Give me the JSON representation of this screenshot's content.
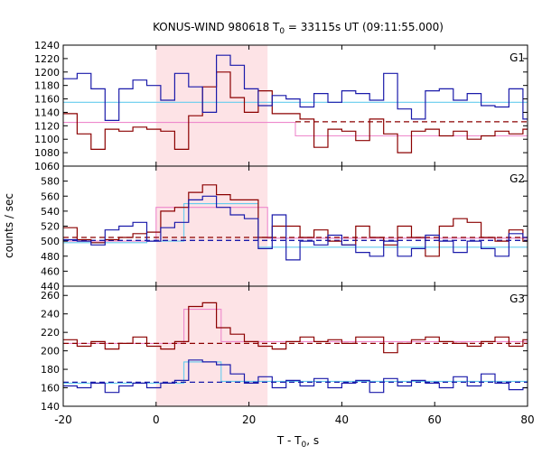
{
  "chart_data": {
    "type": "line",
    "title_main": "KONUS-WIND 980618 T",
    "title_sub": "0",
    "title_rest": " = 33115s UT (09:11:55.000)",
    "ylabel": "counts / sec",
    "xlabel_main": "T - T",
    "xlabel_sub": "0",
    "xlabel_rest": ", s",
    "xlim": [
      -20,
      80
    ],
    "x_ticks": [
      -20,
      0,
      20,
      40,
      60,
      80
    ],
    "shaded_interval": [
      0,
      24
    ],
    "colors": {
      "red": "#8b0000",
      "blue": "#1a1aaa",
      "pink": "#ee88cc",
      "cyan": "#66ccee",
      "shade": "#fde3e6"
    },
    "panels": [
      {
        "label": "G1",
        "ylim": [
          1060,
          1240
        ],
        "y_ticks": [
          1060,
          1080,
          1100,
          1120,
          1140,
          1160,
          1180,
          1200,
          1220,
          1240
        ],
        "series": [
          {
            "color": "red",
            "x": [
              -20,
              -17,
              -14,
              -11,
              -8,
              -5,
              -2,
              1,
              4,
              7,
              10,
              13,
              16,
              19,
              22,
              25,
              28,
              31,
              34,
              37,
              40,
              43,
              46,
              49,
              52,
              55,
              58,
              61,
              64,
              67,
              70,
              73,
              76,
              79
            ],
            "y": [
              1138,
              1108,
              1085,
              1115,
              1112,
              1118,
              1115,
              1112,
              1085,
              1135,
              1178,
              1200,
              1162,
              1140,
              1172,
              1138,
              1138,
              1130,
              1088,
              1115,
              1112,
              1098,
              1130,
              1108,
              1080,
              1112,
              1115,
              1105,
              1112,
              1100,
              1105,
              1112,
              1108,
              1115
            ]
          },
          {
            "color": "blue",
            "x": [
              -20,
              -17,
              -14,
              -11,
              -8,
              -5,
              -2,
              1,
              4,
              7,
              10,
              13,
              16,
              19,
              22,
              25,
              28,
              31,
              34,
              37,
              40,
              43,
              46,
              49,
              52,
              55,
              58,
              61,
              64,
              67,
              70,
              73,
              76,
              79
            ],
            "y": [
              1190,
              1198,
              1175,
              1128,
              1175,
              1188,
              1180,
              1158,
              1198,
              1178,
              1140,
              1225,
              1210,
              1175,
              1150,
              1165,
              1160,
              1148,
              1168,
              1155,
              1172,
              1168,
              1158,
              1198,
              1145,
              1130,
              1172,
              1175,
              1158,
              1168,
              1150,
              1148,
              1175,
              1130
            ]
          }
        ],
        "fits": [
          {
            "color": "cyan",
            "x": [
              -20,
              2,
              2,
              35,
              35,
              80
            ],
            "y": [
              1155,
              1155,
              1155,
              1155,
              1155,
              1155
            ],
            "dashed": false
          },
          {
            "color": "pink",
            "x": [
              -20,
              -2,
              -2,
              6,
              6,
              30,
              30,
              80
            ],
            "y": [
              1125,
              1125,
              1125,
              1125,
              1125,
              1125,
              1105,
              1105
            ],
            "dashed": false
          },
          {
            "color": "red",
            "x": [
              30,
              80
            ],
            "y": [
              1126,
              1126
            ],
            "dashed": true
          }
        ]
      },
      {
        "label": "G2",
        "ylim": [
          440,
          600
        ],
        "y_ticks": [
          440,
          460,
          480,
          500,
          520,
          540,
          560,
          580
        ],
        "series": [
          {
            "color": "red",
            "x": [
              -20,
              -17,
              -14,
              -11,
              -8,
              -5,
              -2,
              1,
              4,
              7,
              10,
              13,
              16,
              19,
              22,
              25,
              28,
              31,
              34,
              37,
              40,
              43,
              46,
              49,
              52,
              55,
              58,
              61,
              64,
              67,
              70,
              73,
              76,
              79
            ],
            "y": [
              518,
              502,
              498,
              502,
              505,
              510,
              512,
              540,
              545,
              565,
              575,
              562,
              555,
              555,
              505,
              520,
              520,
              505,
              515,
              500,
              495,
              520,
              505,
              495,
              520,
              505,
              480,
              520,
              530,
              525,
              505,
              500,
              515,
              500
            ]
          },
          {
            "color": "blue",
            "x": [
              -20,
              -17,
              -14,
              -11,
              -8,
              -5,
              -2,
              1,
              4,
              7,
              10,
              13,
              16,
              19,
              22,
              25,
              28,
              31,
              34,
              37,
              40,
              43,
              46,
              49,
              52,
              55,
              58,
              61,
              64,
              67,
              70,
              73,
              76,
              79
            ],
            "y": [
              502,
              500,
              495,
              515,
              520,
              525,
              500,
              518,
              525,
              555,
              560,
              545,
              535,
              530,
              490,
              535,
              475,
              500,
              495,
              508,
              495,
              485,
              480,
              500,
              480,
              490,
              508,
              500,
              485,
              500,
              490,
              480,
              510,
              505
            ]
          }
        ],
        "fits": [
          {
            "color": "cyan",
            "x": [
              -20,
              -2,
              -2,
              6,
              6,
              20,
              20,
              22,
              22,
              80
            ],
            "y": [
              498,
              498,
              500,
              500,
              550,
              550,
              550,
              550,
              492,
              492
            ],
            "dashed": false
          },
          {
            "color": "pink",
            "x": [
              -20,
              0,
              0,
              24,
              24,
              80
            ],
            "y": [
              500,
              500,
              545,
              545,
              504,
              504
            ],
            "dashed": false
          },
          {
            "color": "red",
            "x": [
              -20,
              80
            ],
            "y": [
              505,
              505
            ],
            "dashed": true
          },
          {
            "color": "blue",
            "x": [
              -20,
              80
            ],
            "y": [
              501,
              501
            ],
            "dashed": true
          }
        ]
      },
      {
        "label": "G3",
        "ylim": [
          140,
          270
        ],
        "y_ticks": [
          140,
          160,
          180,
          200,
          220,
          240,
          260
        ],
        "series": [
          {
            "color": "red",
            "x": [
              -20,
              -17,
              -14,
              -11,
              -8,
              -5,
              -2,
              1,
              4,
              7,
              10,
              13,
              16,
              19,
              22,
              25,
              28,
              31,
              34,
              37,
              40,
              43,
              46,
              49,
              52,
              55,
              58,
              61,
              64,
              67,
              70,
              73,
              76,
              79
            ],
            "y": [
              212,
              205,
              210,
              202,
              208,
              215,
              205,
              202,
              210,
              248,
              252,
              225,
              218,
              210,
              205,
              202,
              210,
              215,
              210,
              212,
              208,
              215,
              215,
              198,
              208,
              212,
              215,
              210,
              208,
              205,
              210,
              215,
              205,
              212
            ]
          },
          {
            "color": "blue",
            "x": [
              -20,
              -17,
              -14,
              -11,
              -8,
              -5,
              -2,
              1,
              4,
              7,
              10,
              13,
              16,
              19,
              22,
              25,
              28,
              31,
              34,
              37,
              40,
              43,
              46,
              49,
              52,
              55,
              58,
              61,
              64,
              67,
              70,
              73,
              76,
              79
            ],
            "y": [
              162,
              160,
              165,
              155,
              162,
              165,
              160,
              165,
              168,
              190,
              188,
              185,
              175,
              165,
              172,
              160,
              168,
              162,
              170,
              160,
              165,
              168,
              155,
              170,
              162,
              168,
              165,
              160,
              172,
              162,
              175,
              165,
              158,
              160
            ]
          }
        ],
        "fits": [
          {
            "color": "pink",
            "x": [
              -20,
              6,
              6,
              14,
              14,
              80
            ],
            "y": [
              208,
              208,
              245,
              245,
              210,
              210
            ],
            "dashed": false
          },
          {
            "color": "cyan",
            "x": [
              -20,
              6,
              6,
              14,
              14,
              80
            ],
            "y": [
              165,
              165,
              188,
              188,
              167,
              167
            ],
            "dashed": false
          },
          {
            "color": "red",
            "x": [
              -20,
              80
            ],
            "y": [
              208,
              208
            ],
            "dashed": true
          },
          {
            "color": "blue",
            "x": [
              -20,
              80
            ],
            "y": [
              166,
              166
            ],
            "dashed": true
          }
        ]
      }
    ]
  }
}
